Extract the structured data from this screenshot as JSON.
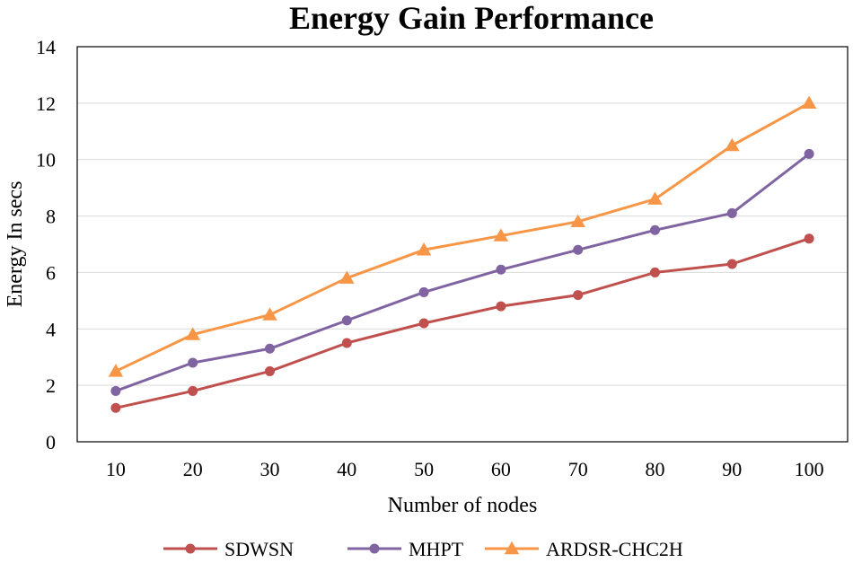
{
  "chart_data": {
    "type": "line",
    "title": "Energy Gain  Performance",
    "xlabel": "Number of nodes",
    "ylabel": "Energy  In secs",
    "categories": [
      "10",
      "20",
      "30",
      "40",
      "50",
      "60",
      "70",
      "80",
      "90",
      "100"
    ],
    "ylim": [
      0,
      14
    ],
    "yticks": [
      "0",
      "2",
      "4",
      "6",
      "8",
      "10",
      "12",
      "14"
    ],
    "grid": true,
    "legend_position": "bottom",
    "series": [
      {
        "name": "SDWSN",
        "color": "#c0504d",
        "marker": "circle",
        "values": [
          1.2,
          1.8,
          2.5,
          3.5,
          4.2,
          4.8,
          5.2,
          6.0,
          6.3,
          7.2
        ]
      },
      {
        "name": "MHPT",
        "color": "#8064a2",
        "marker": "circle",
        "values": [
          1.8,
          2.8,
          3.3,
          4.3,
          5.3,
          6.1,
          6.8,
          7.5,
          8.1,
          10.2
        ]
      },
      {
        "name": "ARDSR-CHC2H",
        "color": "#f79646",
        "marker": "triangle",
        "values": [
          2.5,
          3.8,
          4.5,
          5.8,
          6.8,
          7.3,
          7.8,
          8.6,
          10.5,
          12.0
        ]
      }
    ]
  }
}
